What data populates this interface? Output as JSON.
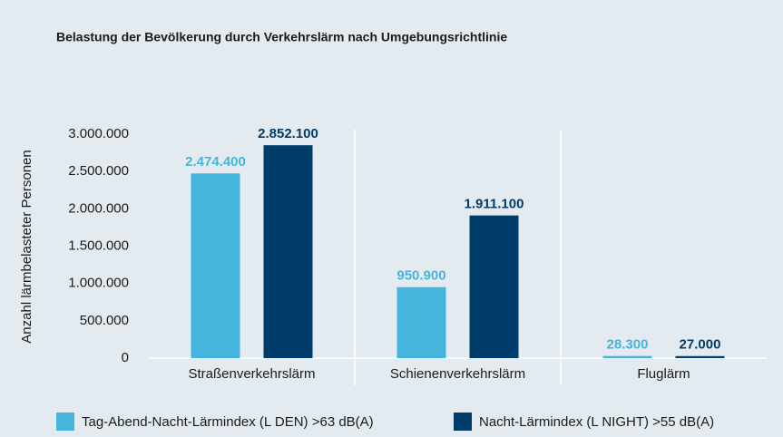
{
  "chart_data": {
    "type": "bar",
    "title": "Belastung der Bevölkerung durch Verkehrslärm nach Umgebungsrichtlinie",
    "ylabel": "Anzahl lärmbelasteter Personen",
    "categories": [
      "Straßenverkehrslärm",
      "Schienenverkehrslärm",
      "Fluglärm"
    ],
    "series": [
      {
        "name": "Tag-Abend-Nacht-Lärmindex (L DEN) >63 dB(A)",
        "color": "#45b5dd",
        "values": [
          2474400,
          950900,
          28300
        ],
        "value_labels": [
          "2.474.400",
          "950.900",
          "28.300"
        ]
      },
      {
        "name": "Nacht-Lärmindex (L NIGHT) >55 dB(A)",
        "color": "#003c6a",
        "values": [
          2852100,
          1911100,
          27000
        ],
        "value_labels": [
          "2.852.100",
          "1.911.100",
          "27.000"
        ]
      }
    ],
    "ylim": [
      0,
      3000000
    ],
    "yticks": [
      0,
      {
        "value": 500000,
        "label": "500.000"
      },
      {
        "value": 1000000,
        "label": "1.000.000"
      },
      {
        "value": 1500000,
        "label": "1.500.000"
      },
      {
        "value": 2000000,
        "label": "2.000.000"
      },
      {
        "value": 2500000,
        "label": "2.500.000"
      },
      {
        "value": 3000000,
        "label": "3.000.000"
      }
    ],
    "legend": "bottom"
  }
}
